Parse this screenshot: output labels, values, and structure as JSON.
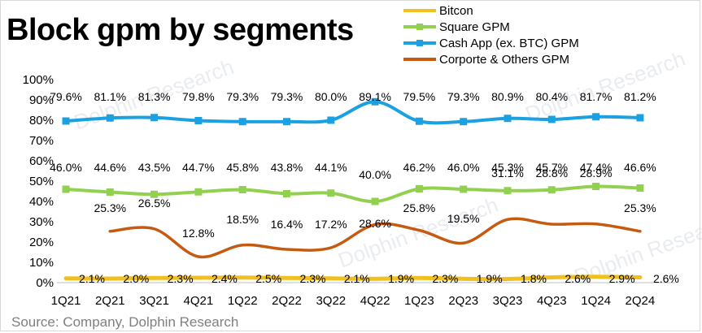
{
  "title": "Block gpm by segments",
  "source": "Source: Company, Dolphin Research",
  "watermark": "Dolphin Research",
  "colors": {
    "bitcoin": "#f2c01e",
    "square": "#92d050",
    "cashapp": "#1ba1e2",
    "corporate": "#c55a11"
  },
  "chart_data": {
    "type": "line",
    "categories": [
      "1Q21",
      "2Q21",
      "3Q21",
      "4Q21",
      "1Q22",
      "2Q22",
      "3Q22",
      "4Q22",
      "1Q23",
      "2Q23",
      "3Q23",
      "4Q23",
      "1Q24",
      "2Q24"
    ],
    "ylim": [
      0,
      100
    ],
    "yticks": [
      "0%",
      "10%",
      "20%",
      "30%",
      "40%",
      "50%",
      "60%",
      "70%",
      "80%",
      "90%",
      "100%"
    ],
    "legend_position": "top-right",
    "grid": false,
    "series": [
      {
        "name": "Bitcon",
        "key": "bitcoin",
        "values": [
          2.1,
          2.0,
          2.3,
          2.4,
          2.5,
          2.3,
          2.1,
          1.9,
          2.3,
          1.9,
          1.8,
          2.6,
          2.9,
          2.6
        ],
        "labels": [
          "2.1%",
          "2.0%",
          "2.3%",
          "2.4%",
          "2.5%",
          "2.3%",
          "2.1%",
          "1.9%",
          "2.3%",
          "1.9%",
          "1.8%",
          "2.6%",
          "2.9%",
          "2.6%"
        ]
      },
      {
        "name": "Square GPM",
        "key": "square",
        "values": [
          46.0,
          44.6,
          43.5,
          44.7,
          45.8,
          43.8,
          44.1,
          40.0,
          46.2,
          46.0,
          45.3,
          45.7,
          47.4,
          46.6
        ],
        "labels": [
          "46.0%",
          "44.6%",
          "43.5%",
          "44.7%",
          "45.8%",
          "43.8%",
          "44.1%",
          "40.0%",
          "46.2%",
          "46.0%",
          "45.3%",
          "45.7%",
          "47.4%",
          "46.6%"
        ]
      },
      {
        "name": "Cash App (ex. BTC) GPM",
        "key": "cashapp",
        "values": [
          79.6,
          81.1,
          81.3,
          79.8,
          79.3,
          79.3,
          80.0,
          89.1,
          79.5,
          79.3,
          80.9,
          80.4,
          81.7,
          81.2
        ],
        "labels": [
          "79.6%",
          "81.1%",
          "81.3%",
          "79.8%",
          "79.3%",
          "79.3%",
          "80.0%",
          "89.1%",
          "79.5%",
          "79.3%",
          "80.9%",
          "80.4%",
          "81.7%",
          "81.2%"
        ]
      },
      {
        "name": "Corporte & Others GPM",
        "key": "corporate",
        "values": [
          null,
          25.3,
          26.5,
          12.8,
          18.5,
          16.4,
          17.2,
          28.6,
          25.8,
          19.5,
          31.1,
          28.8,
          28.9,
          25.3
        ],
        "labels": [
          null,
          "25.3%",
          "26.5%",
          "12.8%",
          "18.5%",
          "16.4%",
          "17.2%",
          "28.6%",
          "25.8%",
          "19.5%",
          "31.1%",
          "28.8%",
          "28.9%",
          "25.3%"
        ]
      }
    ]
  }
}
